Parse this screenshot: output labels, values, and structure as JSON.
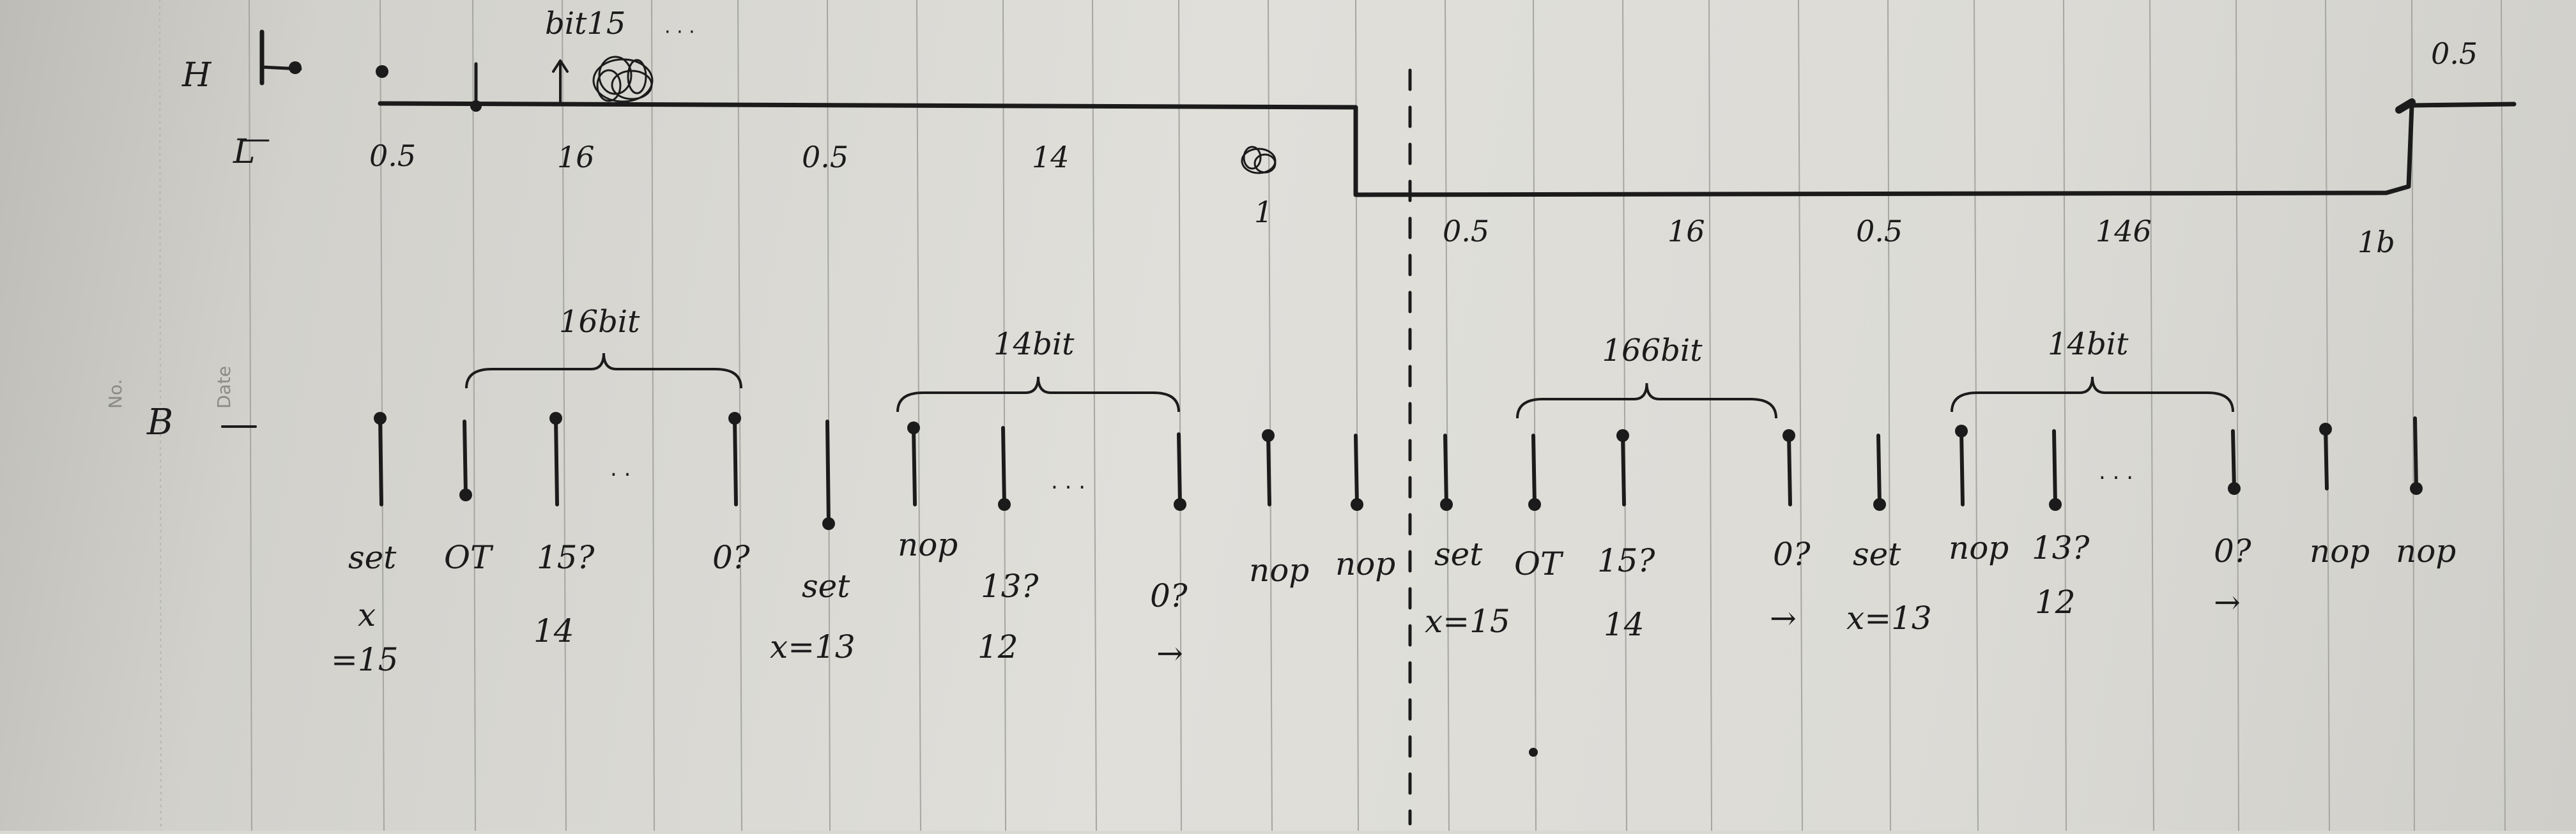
{
  "signal": {
    "h_label": "H",
    "l_label": "L",
    "top_annotation": "bit15",
    "top_dots": "· · ·",
    "segment_labels": [
      "0.5",
      "16",
      "0.5",
      "14",
      "1",
      "0.5",
      "16",
      "0.5",
      "146",
      "1b",
      "0.5"
    ]
  },
  "b_label": "B",
  "margin_text": {
    "no": "No.",
    "date": "Date"
  },
  "braces": [
    "16bit",
    "14bit",
    "166bit",
    "14bit"
  ],
  "ellipses": [
    ". .",
    ". . .",
    ". . ."
  ],
  "pulse_labels": [
    [
      "set",
      "x",
      "=15"
    ],
    [
      "OT"
    ],
    [
      "15?",
      "14"
    ],
    [
      "0?"
    ],
    [
      "set",
      "x=13"
    ],
    [
      "nop"
    ],
    [
      "13?",
      "12"
    ],
    [
      "0?",
      "→"
    ],
    [
      "nop"
    ],
    [
      "nop"
    ],
    [
      "set",
      "x=15"
    ],
    [
      "OT"
    ],
    [
      "15?",
      "14"
    ],
    [
      "0?",
      "→"
    ],
    [
      "set",
      "x=13"
    ],
    [
      "nop"
    ],
    [
      "13?",
      "12"
    ],
    [
      "0?",
      "→"
    ],
    [
      "nop"
    ],
    [
      "nop"
    ]
  ],
  "colors": {
    "ink": "#1b1b1b",
    "paper": "#dcdbd6",
    "rule": "#a6a6a2"
  }
}
